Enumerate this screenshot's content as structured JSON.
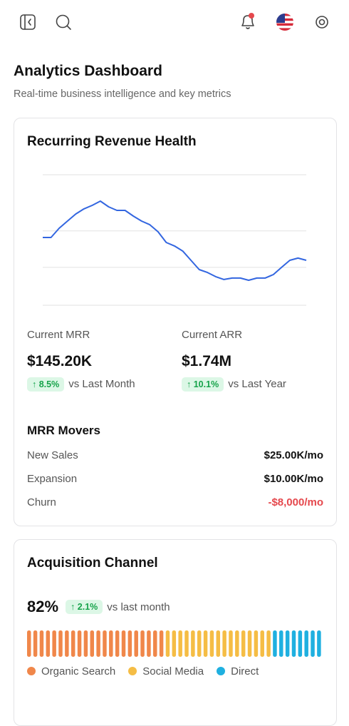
{
  "header": {
    "title": "Analytics Dashboard",
    "subtitle": "Real-time business intelligence and key metrics"
  },
  "revenue_card": {
    "title": "Recurring Revenue Health",
    "metrics": [
      {
        "label": "Current MRR",
        "value": "$145.20K",
        "change": "8.5%",
        "comparison": "vs Last Month"
      },
      {
        "label": "Current ARR",
        "value": "$1.74M",
        "change": "10.1%",
        "comparison": "vs Last Year"
      }
    ],
    "movers": {
      "title": "MRR Movers",
      "rows": [
        [
          "New Sales",
          "$25.00K/mo"
        ],
        [
          "Expansion",
          "$10.00K/mo"
        ],
        [
          "Churn",
          "-$8,000/mo"
        ]
      ]
    }
  },
  "acquisition_card": {
    "title": "Acquisition Channel",
    "value": "82%",
    "change": "2.1%",
    "comparison": "vs last month"
  },
  "chart_data": [
    {
      "type": "line",
      "color": "#3366e0",
      "grid": true,
      "ylim": [
        0,
        100
      ],
      "yticks": [
        0,
        29,
        57,
        100
      ],
      "categories": [
        null,
        null,
        null,
        null,
        null,
        null,
        null,
        null,
        null,
        null,
        null,
        null,
        null,
        null,
        null,
        null,
        null,
        null,
        null,
        null,
        null,
        null,
        null,
        null,
        null,
        null,
        null,
        null,
        null,
        null,
        null,
        null,
        null
      ],
      "values": [
        51.9,
        51.9,
        59.0,
        64.5,
        69.9,
        73.8,
        76.5,
        79.8,
        75.4,
        72.7,
        72.7,
        68.3,
        64.5,
        61.7,
        56.3,
        48.1,
        45.4,
        41.5,
        34.4,
        27.3,
        25.1,
        21.9,
        19.7,
        20.8,
        20.8,
        19.1,
        20.8,
        20.8,
        23.5,
        29.0,
        34.4,
        36.1,
        34.4
      ]
    },
    {
      "type": "segmented-bar",
      "series": [
        {
          "name": "Organic Search",
          "color": "#f0874a",
          "values": [
            22
          ]
        },
        {
          "name": "Social Media",
          "color": "#f5bd45",
          "values": [
            17
          ]
        },
        {
          "name": "Direct",
          "color": "#1fb0e0",
          "values": [
            8
          ]
        }
      ]
    }
  ]
}
